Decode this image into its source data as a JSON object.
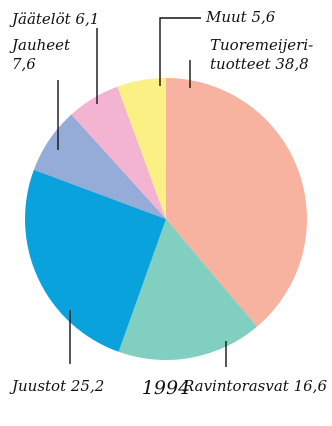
{
  "chart_data": {
    "type": "pie",
    "title": "1994",
    "start_angle_deg": 0,
    "direction": "clockwise",
    "slices": [
      {
        "label_lines": [
          "Tuoremeijeri-",
          "tuotteet 38,8"
        ],
        "value": 38.8,
        "color": "#F7B3A0"
      },
      {
        "label_lines": [
          "Ravintorasvat 16,6"
        ],
        "value": 16.6,
        "color": "#80CFC0"
      },
      {
        "label_lines": [
          "Juustot 25,2"
        ],
        "value": 25.2,
        "color": "#0AA2DD"
      },
      {
        "label_lines": [
          "Jauheet",
          "7,6"
        ],
        "value": 7.6,
        "color": "#96ACD8"
      },
      {
        "label_lines": [
          "Jäätelöt 6,1"
        ],
        "value": 6.1,
        "color": "#F3B4D2"
      },
      {
        "label_lines": [
          "Muut 5,6"
        ],
        "value": 5.6,
        "color": "#FAF083"
      }
    ]
  }
}
